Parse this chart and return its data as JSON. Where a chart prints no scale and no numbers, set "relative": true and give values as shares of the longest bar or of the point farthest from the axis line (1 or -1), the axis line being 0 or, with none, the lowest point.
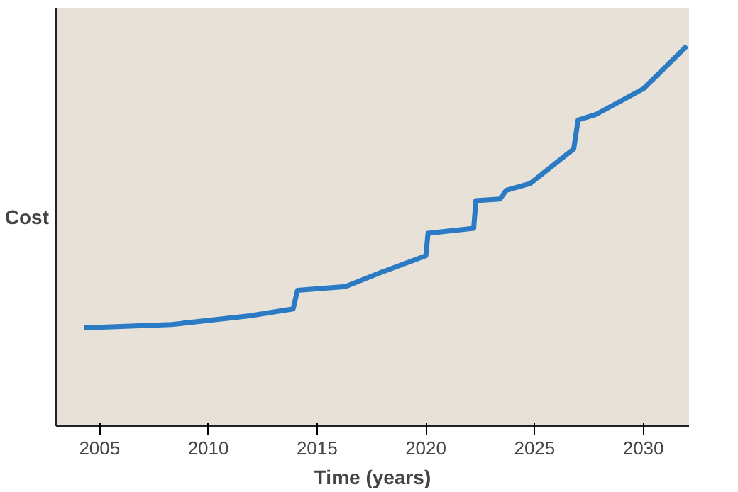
{
  "chart_data": {
    "type": "line",
    "xlabel": "Time (years)",
    "ylabel": "Cost",
    "relative": true,
    "line_style": "solid",
    "xlim": [
      2003,
      2032.1
    ],
    "xticks": [
      2005,
      2010,
      2015,
      2020,
      2025,
      2030
    ],
    "series": [
      {
        "color": "#2a7bc4",
        "x": [
          2004.3,
          2008.3,
          2011.9,
          2013.9,
          2014.1,
          2016.3,
          2017.9,
          2020.0,
          2020.1,
          2022.2,
          2022.3,
          2023.4,
          2023.7,
          2024.8,
          2026.8,
          2027.0,
          2027.8,
          2030.0,
          2032.0
        ],
        "values": [
          0.258,
          0.267,
          0.29,
          0.308,
          0.357,
          0.367,
          0.403,
          0.448,
          0.507,
          0.52,
          0.593,
          0.597,
          0.62,
          0.638,
          0.729,
          0.805,
          0.819,
          0.887,
          1.0
        ]
      }
    ]
  }
}
